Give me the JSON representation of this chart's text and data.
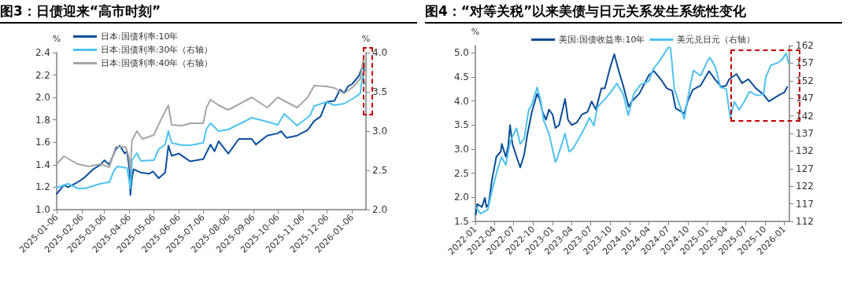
{
  "chart_data": [
    {
      "type": "line",
      "title": "图3：日债迎来“高市时刻”",
      "ylabel": "%",
      "y2label": "%",
      "legend": "top left",
      "grid": false,
      "marker": "none",
      "line_style": "solid",
      "xlim": [
        "2025-01-06",
        "2026-01-23"
      ],
      "xticks": [
        "2025-01-06",
        "2025-02-06",
        "2025-03-06",
        "2025-04-06",
        "2025-05-06",
        "2025-06-06",
        "2025-07-06",
        "2025-08-06",
        "2025-09-06",
        "2025-10-06",
        "2025-11-06",
        "2025-12-06",
        "2026-01-06"
      ],
      "ylim": [
        1,
        2.4
      ],
      "yticks": [
        {
          "value": 1,
          "label": "1.0"
        },
        1.2,
        1.4,
        1.6,
        1.8,
        {
          "value": 2,
          "label": "2.0"
        },
        2.2,
        2.4
      ],
      "y2lim": [
        2,
        4
      ],
      "y2ticks": [
        {
          "value": 2,
          "label": "2.0"
        },
        2.5,
        {
          "value": 3,
          "label": "3.0"
        },
        3.5,
        {
          "value": 4,
          "label": "4.0"
        }
      ],
      "series": [
        {
          "name": "日本:国债利率:10年",
          "color": "#0b4f9c",
          "x": [
            "2025-01-06",
            "2025-01-15",
            "2025-01-20",
            "2025-01-31",
            "2025-02-10",
            "2025-02-20",
            "2025-03-01",
            "2025-03-06",
            "2025-03-12",
            "2025-03-20",
            "2025-03-25",
            "2025-03-31",
            "2025-04-03",
            "2025-04-06",
            "2025-04-07",
            "2025-04-09",
            "2025-04-11",
            "2025-04-20",
            "2025-04-30",
            "2025-05-05",
            "2025-05-12",
            "2025-05-20",
            "2025-05-24",
            "2025-05-28",
            "2025-06-06",
            "2025-06-20",
            "2025-07-06",
            "2025-07-15",
            "2025-07-20",
            "2025-07-25",
            "2025-08-06",
            "2025-08-19",
            "2025-09-04",
            "2025-09-09",
            "2025-09-23",
            "2025-10-06",
            "2025-10-10",
            "2025-10-17",
            "2025-10-30",
            "2025-11-12",
            "2025-11-20",
            "2025-11-28",
            "2025-12-05",
            "2025-12-15",
            "2025-12-22",
            "2025-12-27",
            "2026-01-01",
            "2026-01-06",
            "2026-01-14",
            "2026-01-19",
            "2026-01-21"
          ],
          "values": [
            1.14,
            1.22,
            1.2,
            1.24,
            1.29,
            1.36,
            1.4,
            1.44,
            1.4,
            1.54,
            1.57,
            1.5,
            1.52,
            1.35,
            1.13,
            1.28,
            1.36,
            1.33,
            1.32,
            1.34,
            1.28,
            1.33,
            1.57,
            1.48,
            1.5,
            1.43,
            1.45,
            1.58,
            1.52,
            1.61,
            1.5,
            1.63,
            1.63,
            1.58,
            1.66,
            1.68,
            1.7,
            1.64,
            1.66,
            1.71,
            1.79,
            1.83,
            1.96,
            1.97,
            2.07,
            2.04,
            2.1,
            2.12,
            2.19,
            2.28,
            2.24
          ]
        },
        {
          "name": "日本:国债利率:30年（右轴）",
          "color": "#4ec3f0",
          "axis": "y2",
          "x": [
            "2025-01-06",
            "2025-01-20",
            "2025-02-01",
            "2025-02-10",
            "2025-03-01",
            "2025-03-12",
            "2025-03-18",
            "2025-03-22",
            "2025-04-03",
            "2025-04-07",
            "2025-04-09",
            "2025-04-15",
            "2025-04-20",
            "2025-05-06",
            "2025-05-12",
            "2025-05-20",
            "2025-05-24",
            "2025-05-28",
            "2025-06-10",
            "2025-06-20",
            "2025-07-06",
            "2025-07-10",
            "2025-07-15",
            "2025-07-25",
            "2025-08-06",
            "2025-09-04",
            "2025-09-23",
            "2025-10-06",
            "2025-10-14",
            "2025-10-30",
            "2025-11-15",
            "2025-11-20",
            "2025-12-05",
            "2025-12-15",
            "2025-12-27",
            "2026-01-08",
            "2026-01-16",
            "2026-01-19",
            "2026-01-21"
          ],
          "values": [
            2.28,
            2.33,
            2.27,
            2.27,
            2.33,
            2.35,
            2.5,
            2.55,
            2.53,
            2.27,
            2.63,
            2.72,
            2.62,
            2.63,
            2.77,
            2.83,
            3.0,
            2.85,
            2.82,
            2.82,
            2.85,
            3.03,
            3.1,
            3.0,
            3.02,
            3.17,
            3.12,
            3.08,
            3.22,
            3.07,
            3.2,
            3.32,
            3.37,
            3.33,
            3.35,
            3.42,
            3.48,
            3.73,
            3.6
          ]
        },
        {
          "name": "日本:国债利率:40年（右轴）",
          "color": "#a6a6a6",
          "axis": "y2",
          "x": [
            "2025-01-06",
            "2025-01-15",
            "2025-02-01",
            "2025-02-15",
            "2025-03-01",
            "2025-03-12",
            "2025-03-20",
            "2025-04-01",
            "2025-04-05",
            "2025-04-07",
            "2025-04-09",
            "2025-04-15",
            "2025-04-22",
            "2025-05-06",
            "2025-05-15",
            "2025-05-24",
            "2025-05-28",
            "2025-06-10",
            "2025-06-20",
            "2025-07-06",
            "2025-07-10",
            "2025-07-15",
            "2025-07-25",
            "2025-08-06",
            "2025-09-04",
            "2025-09-23",
            "2025-10-06",
            "2025-10-17",
            "2025-10-30",
            "2025-11-12",
            "2025-11-20",
            "2025-12-05",
            "2025-12-15",
            "2025-12-27",
            "2026-01-08",
            "2026-01-16",
            "2026-01-20",
            "2026-01-22"
          ],
          "values": [
            2.58,
            2.68,
            2.58,
            2.55,
            2.58,
            2.54,
            2.8,
            2.8,
            2.68,
            2.52,
            2.88,
            3.0,
            2.9,
            2.95,
            3.15,
            3.33,
            3.08,
            3.07,
            3.1,
            3.1,
            3.3,
            3.4,
            3.33,
            3.27,
            3.43,
            3.3,
            3.43,
            3.37,
            3.3,
            3.43,
            3.58,
            3.57,
            3.55,
            3.48,
            3.57,
            3.67,
            3.92,
            3.78
          ]
        }
      ]
    },
    {
      "type": "line",
      "title": "图4：“对等关税”以来美债与日元关系发生系统性变化",
      "ylabel": "%",
      "legend": "top",
      "grid": false,
      "marker": "none",
      "line_style": "solid",
      "xlim": [
        "2022-01-01",
        "2026-01-25"
      ],
      "xticks": [
        "2022-01",
        "2022-04",
        "2022-07",
        "2022-10",
        "2023-01",
        "2023-04",
        "2023-07",
        "2023-10",
        "2024-01",
        "2024-04",
        "2024-07",
        "2024-10",
        "2025-01",
        "2025-04",
        "2025-07",
        "2025-10",
        "2026-01"
      ],
      "ylim": [
        1.5,
        5.15
      ],
      "yticks": [
        1.5,
        {
          "value": 2,
          "label": "2.0"
        },
        2.5,
        {
          "value": 3,
          "label": "3.0"
        },
        3.5,
        {
          "value": 4,
          "label": "4.0"
        },
        4.5,
        {
          "value": 5,
          "label": "5.0"
        }
      ],
      "y2lim": [
        112,
        162
      ],
      "y2ticks": [
        112,
        117,
        122,
        127,
        132,
        137,
        142,
        147,
        152,
        157,
        162
      ],
      "series": [
        {
          "name": "美国:国债收益率:10年",
          "color": "#0b4c95",
          "x": [
            "2022-01-03",
            "2022-01-10",
            "2022-02-01",
            "2022-02-15",
            "2022-02-22",
            "2022-03-05",
            "2022-03-20",
            "2022-04-10",
            "2022-05-01",
            "2022-05-06",
            "2022-05-25",
            "2022-06-05",
            "2022-06-14",
            "2022-06-25",
            "2022-07-15",
            "2022-08-01",
            "2022-08-20",
            "2022-09-05",
            "2022-09-25",
            "2022-10-20",
            "2022-11-01",
            "2022-11-15",
            "2022-12-01",
            "2022-12-15",
            "2023-01-01",
            "2023-01-15",
            "2023-02-01",
            "2023-03-01",
            "2023-03-15",
            "2023-04-01",
            "2023-04-25",
            "2023-05-20",
            "2023-06-15",
            "2023-07-05",
            "2023-07-25",
            "2023-08-20",
            "2023-09-05",
            "2023-10-01",
            "2023-10-20",
            "2023-11-05",
            "2023-12-01",
            "2023-12-27",
            "2024-01-10",
            "2024-02-15",
            "2024-04-01",
            "2024-04-25",
            "2024-05-30",
            "2024-06-25",
            "2024-07-20",
            "2024-08-05",
            "2024-09-15",
            "2024-10-01",
            "2024-10-25",
            "2024-12-01",
            "2025-01-10",
            "2025-02-10",
            "2025-03-10",
            "2025-04-01",
            "2025-04-15",
            "2025-05-20",
            "2025-06-15",
            "2025-07-15",
            "2025-08-20",
            "2025-09-25",
            "2025-10-20",
            "2025-12-10",
            "2026-01-01",
            "2026-01-15"
          ],
          "values": [
            1.64,
            1.86,
            1.8,
            1.99,
            1.8,
            1.86,
            2.35,
            2.84,
            2.95,
            3.11,
            2.84,
            3.06,
            3.5,
            3.11,
            2.84,
            2.62,
            2.89,
            3.33,
            3.77,
            4.15,
            4.04,
            3.77,
            3.61,
            3.82,
            3.72,
            3.44,
            3.5,
            4.04,
            3.61,
            3.5,
            3.55,
            3.72,
            3.77,
            3.99,
            3.82,
            4.26,
            4.26,
            4.7,
            4.97,
            4.7,
            4.32,
            3.88,
            3.99,
            4.15,
            4.54,
            4.62,
            4.43,
            4.26,
            4.21,
            3.85,
            3.74,
            3.99,
            4.23,
            4.32,
            4.62,
            4.43,
            4.29,
            4.32,
            4.45,
            4.56,
            4.37,
            4.45,
            4.26,
            4.13,
            3.99,
            4.13,
            4.18,
            4.29
          ]
        },
        {
          "name": "美元兑日元（右轴）",
          "color": "#4fc1ef",
          "axis": "y2",
          "x": [
            "2022-01-03",
            "2022-01-25",
            "2022-03-01",
            "2022-03-20",
            "2022-04-15",
            "2022-05-05",
            "2022-05-25",
            "2022-06-15",
            "2022-07-15",
            "2022-08-01",
            "2022-08-20",
            "2022-09-10",
            "2022-09-25",
            "2022-10-20",
            "2022-11-05",
            "2022-11-20",
            "2022-12-15",
            "2023-01-15",
            "2023-01-25",
            "2023-02-10",
            "2023-03-01",
            "2023-03-20",
            "2023-04-05",
            "2023-05-01",
            "2023-06-01",
            "2023-06-25",
            "2023-07-15",
            "2023-08-01",
            "2023-09-05",
            "2023-10-05",
            "2023-11-01",
            "2023-12-01",
            "2023-12-25",
            "2024-01-20",
            "2024-02-20",
            "2024-04-01",
            "2024-04-20",
            "2024-05-25",
            "2024-07-01",
            "2024-07-12",
            "2024-07-30",
            "2024-08-15",
            "2024-09-15",
            "2024-10-05",
            "2024-10-28",
            "2024-12-01",
            "2025-01-05",
            "2025-01-15",
            "2025-02-10",
            "2025-03-05",
            "2025-04-01",
            "2025-04-20",
            "2025-05-10",
            "2025-06-01",
            "2025-06-25",
            "2025-07-20",
            "2025-08-25",
            "2025-09-25",
            "2025-10-05",
            "2025-10-30",
            "2025-12-01",
            "2025-12-20",
            "2026-01-10",
            "2026-01-20"
          ],
          "values": [
            116.1,
            114.2,
            115.4,
            120.6,
            126.6,
            130.3,
            128.0,
            134.8,
            138.5,
            134.0,
            135.5,
            143.7,
            145.2,
            150.1,
            146.7,
            140.7,
            137.0,
            128.8,
            130.3,
            133.3,
            137.0,
            131.8,
            132.5,
            135.1,
            138.5,
            141.5,
            139.2,
            144.5,
            146.7,
            148.9,
            151.2,
            148.2,
            142.2,
            148.2,
            150.8,
            151.9,
            155.3,
            157.9,
            161.5,
            161.3,
            149.7,
            146.7,
            141.1,
            148.2,
            154.9,
            153.4,
            157.9,
            158.6,
            155.7,
            150.1,
            149.7,
            141.5,
            146.0,
            143.7,
            146.0,
            148.9,
            147.8,
            148.2,
            153.0,
            156.4,
            157.1,
            157.9,
            159.8,
            157.1
          ]
        }
      ]
    }
  ]
}
